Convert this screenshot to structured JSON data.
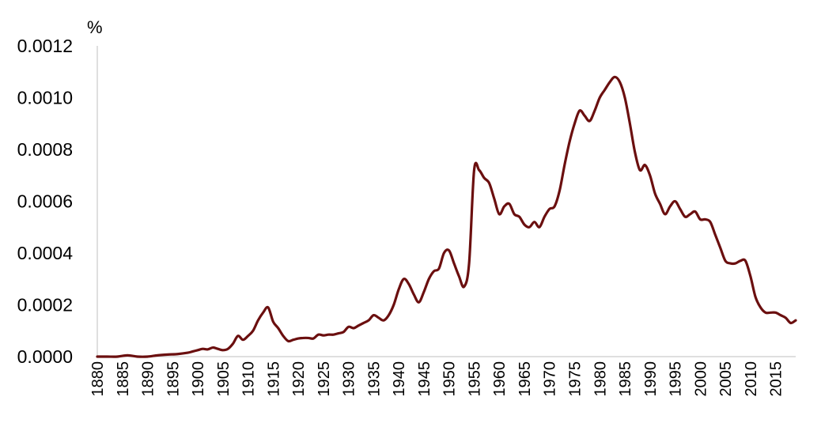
{
  "chart_data": {
    "type": "line",
    "ylabel": "%",
    "xlim": [
      1880,
      2019
    ],
    "ylim": [
      0,
      0.0012
    ],
    "y_ticks": [
      "0.0000",
      "0.0002",
      "0.0004",
      "0.0006",
      "0.0008",
      "0.0010",
      "0.0012"
    ],
    "x_ticks": [
      "1880",
      "1885",
      "1890",
      "1895",
      "1900",
      "1905",
      "1910",
      "1915",
      "1920",
      "1925",
      "1930",
      "1935",
      "1940",
      "1945",
      "1950",
      "1955",
      "1960",
      "1965",
      "1970",
      "1975",
      "1980",
      "1985",
      "1990",
      "1995",
      "2000",
      "2005",
      "2010",
      "2015"
    ],
    "grid": false,
    "series": [
      {
        "color": "#6b0f0f",
        "points": [
          [
            1880,
            0.0
          ],
          [
            1882,
            0.0
          ],
          [
            1884,
            0.0
          ],
          [
            1886,
            5e-06
          ],
          [
            1888,
            0.0
          ],
          [
            1890,
            0.0
          ],
          [
            1892,
            5e-06
          ],
          [
            1894,
            8e-06
          ],
          [
            1896,
            1e-05
          ],
          [
            1898,
            1.5e-05
          ],
          [
            1899,
            2e-05
          ],
          [
            1900,
            2.5e-05
          ],
          [
            1901,
            3e-05
          ],
          [
            1902,
            2.8e-05
          ],
          [
            1903,
            3.5e-05
          ],
          [
            1904,
            3e-05
          ],
          [
            1905,
            2.5e-05
          ],
          [
            1906,
            3e-05
          ],
          [
            1907,
            5e-05
          ],
          [
            1908,
            8e-05
          ],
          [
            1909,
            6.5e-05
          ],
          [
            1910,
            8e-05
          ],
          [
            1911,
            0.0001
          ],
          [
            1912,
            0.00014
          ],
          [
            1913,
            0.00017
          ],
          [
            1914,
            0.00019
          ],
          [
            1915,
            0.000135
          ],
          [
            1916,
            0.00011
          ],
          [
            1917,
            8e-05
          ],
          [
            1918,
            6e-05
          ],
          [
            1919,
            6.5e-05
          ],
          [
            1920,
            7e-05
          ],
          [
            1921,
            7.2e-05
          ],
          [
            1922,
            7.2e-05
          ],
          [
            1923,
            7e-05
          ],
          [
            1924,
            8.5e-05
          ],
          [
            1925,
            8.2e-05
          ],
          [
            1926,
            8.5e-05
          ],
          [
            1927,
            8.5e-05
          ],
          [
            1928,
            9e-05
          ],
          [
            1929,
            9.5e-05
          ],
          [
            1930,
            0.000115
          ],
          [
            1931,
            0.00011
          ],
          [
            1932,
            0.00012
          ],
          [
            1933,
            0.00013
          ],
          [
            1934,
            0.00014
          ],
          [
            1935,
            0.00016
          ],
          [
            1936,
            0.00015
          ],
          [
            1937,
            0.00014
          ],
          [
            1938,
            0.00016
          ],
          [
            1939,
            0.0002
          ],
          [
            1940,
            0.00026
          ],
          [
            1941,
            0.0003
          ],
          [
            1942,
            0.00028
          ],
          [
            1943,
            0.00024
          ],
          [
            1944,
            0.00021
          ],
          [
            1945,
            0.00025
          ],
          [
            1946,
            0.0003
          ],
          [
            1947,
            0.00033
          ],
          [
            1948,
            0.00034
          ],
          [
            1949,
            0.0004
          ],
          [
            1950,
            0.00041
          ],
          [
            1951,
            0.00036
          ],
          [
            1952,
            0.00031
          ],
          [
            1953,
            0.00027
          ],
          [
            1954,
            0.00036
          ],
          [
            1955,
            0.00072
          ],
          [
            1956,
            0.00072
          ],
          [
            1957,
            0.00069
          ],
          [
            1958,
            0.00067
          ],
          [
            1959,
            0.00061
          ],
          [
            1960,
            0.00055
          ],
          [
            1961,
            0.00058
          ],
          [
            1962,
            0.00059
          ],
          [
            1963,
            0.00055
          ],
          [
            1964,
            0.00054
          ],
          [
            1965,
            0.00051
          ],
          [
            1966,
            0.0005
          ],
          [
            1967,
            0.00052
          ],
          [
            1968,
            0.0005
          ],
          [
            1969,
            0.00054
          ],
          [
            1970,
            0.00057
          ],
          [
            1971,
            0.00058
          ],
          [
            1972,
            0.00064
          ],
          [
            1973,
            0.00074
          ],
          [
            1974,
            0.00083
          ],
          [
            1975,
            0.0009
          ],
          [
            1976,
            0.00095
          ],
          [
            1977,
            0.00093
          ],
          [
            1978,
            0.00091
          ],
          [
            1979,
            0.00095
          ],
          [
            1980,
            0.001
          ],
          [
            1981,
            0.00103
          ],
          [
            1982,
            0.00106
          ],
          [
            1983,
            0.00108
          ],
          [
            1984,
            0.00106
          ],
          [
            1985,
            0.001
          ],
          [
            1986,
            0.0009
          ],
          [
            1987,
            0.00079
          ],
          [
            1988,
            0.00072
          ],
          [
            1989,
            0.00074
          ],
          [
            1990,
            0.0007
          ],
          [
            1991,
            0.00063
          ],
          [
            1992,
            0.00059
          ],
          [
            1993,
            0.00055
          ],
          [
            1994,
            0.00058
          ],
          [
            1995,
            0.0006
          ],
          [
            1996,
            0.00057
          ],
          [
            1997,
            0.00054
          ],
          [
            1998,
            0.00055
          ],
          [
            1999,
            0.00056
          ],
          [
            2000,
            0.00053
          ],
          [
            2001,
            0.00053
          ],
          [
            2002,
            0.00052
          ],
          [
            2003,
            0.00047
          ],
          [
            2004,
            0.00042
          ],
          [
            2005,
            0.00037
          ],
          [
            2006,
            0.00036
          ],
          [
            2007,
            0.00036
          ],
          [
            2008,
            0.00037
          ],
          [
            2009,
            0.00037
          ],
          [
            2010,
            0.00031
          ],
          [
            2011,
            0.00023
          ],
          [
            2012,
            0.00019
          ],
          [
            2013,
            0.00017
          ],
          [
            2014,
            0.00017
          ],
          [
            2015,
            0.00017
          ],
          [
            2016,
            0.00016
          ],
          [
            2017,
            0.00015
          ],
          [
            2018,
            0.00013
          ],
          [
            2019,
            0.00014
          ]
        ]
      }
    ]
  }
}
